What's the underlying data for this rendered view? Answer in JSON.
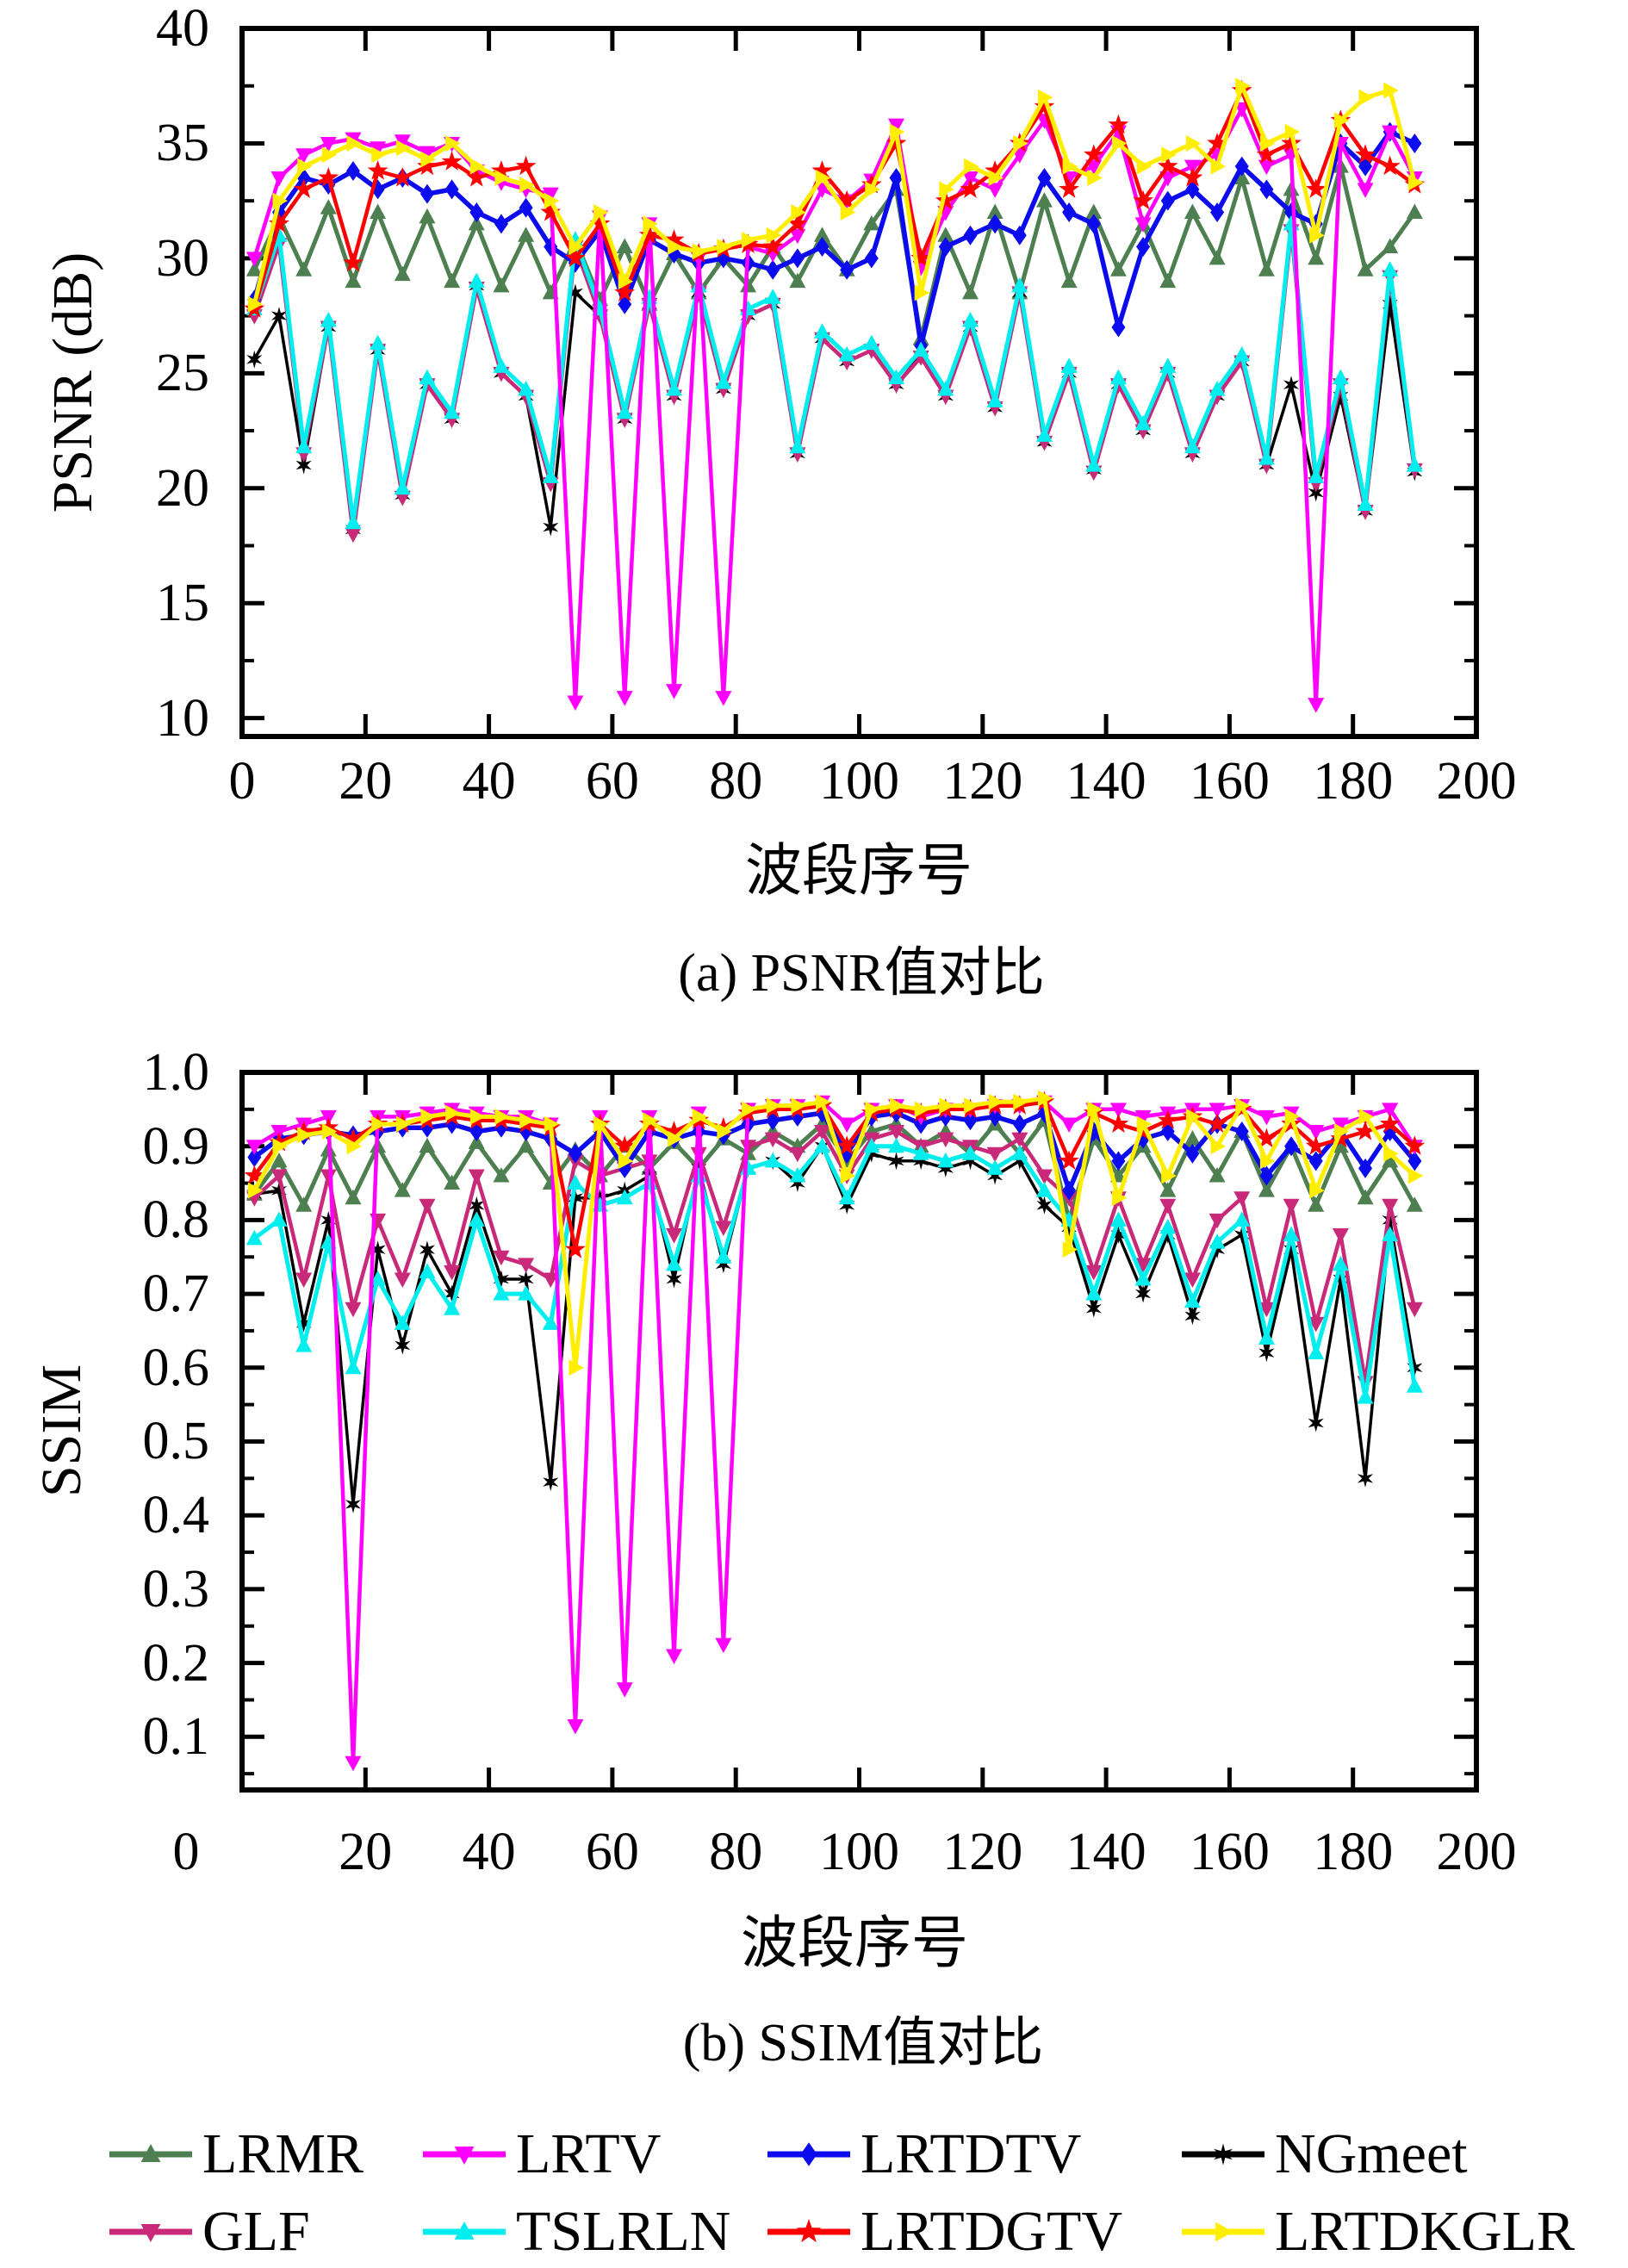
{
  "figure": {
    "background": "#ffffff",
    "captions": {
      "a": "(a) PSNR值对比",
      "b": "(b) SSIM值对比"
    }
  },
  "legend": {
    "entries": [
      {
        "label": "LRMR",
        "color": "#4E7F50",
        "marker": "triangle-up"
      },
      {
        "label": "LRTV",
        "color": "#FF00FF",
        "marker": "triangle-down"
      },
      {
        "label": "LRTDTV",
        "color": "#0B0BEE",
        "marker": "diamond"
      },
      {
        "label": "NGmeet",
        "color": "#000000",
        "marker": "asterisk"
      },
      {
        "label": "GLF",
        "color": "#C92979",
        "marker": "triangle-down"
      },
      {
        "label": "TSLRLN",
        "color": "#00EEEE",
        "marker": "triangle-up"
      },
      {
        "label": "LRTDGTV",
        "color": "#FF0000",
        "marker": "star"
      },
      {
        "label": "LRTDKGLR",
        "color": "#FFEE00",
        "marker": "triangle-right"
      }
    ]
  },
  "chart_data": [
    {
      "type": "line",
      "title": "(a) PSNR值对比",
      "xlabel": "波段序号",
      "ylabel": "PSNR (dB)",
      "xlim": [
        0,
        200
      ],
      "ylim": [
        9.2,
        40
      ],
      "xticks": [
        0,
        20,
        40,
        60,
        80,
        100,
        120,
        140,
        160,
        180,
        200
      ],
      "xtick_labels": [
        "0",
        "20",
        "40",
        "60",
        "80",
        "100",
        "120",
        "140",
        "160",
        "180",
        "200"
      ],
      "yticks": [
        40,
        35,
        30,
        25,
        20,
        15,
        10
      ],
      "ytick_labels": [
        "40",
        "35",
        "30",
        "25",
        "20",
        "15",
        "10"
      ],
      "grid": false,
      "x": [
        2,
        6,
        10,
        14,
        18,
        22,
        26,
        30,
        34,
        38,
        42,
        46,
        50,
        54,
        58,
        62,
        66,
        70,
        74,
        78,
        82,
        86,
        90,
        94,
        98,
        102,
        106,
        110,
        114,
        118,
        122,
        126,
        130,
        134,
        138,
        142,
        146,
        150,
        154,
        158,
        162,
        166,
        170,
        174,
        178,
        182,
        186,
        190
      ],
      "series": [
        {
          "name": "LRMR",
          "values": [
            29.5,
            31.8,
            29.5,
            32.2,
            29.0,
            32.0,
            29.3,
            31.8,
            29.0,
            31.5,
            28.8,
            31.0,
            28.5,
            30.8,
            28.2,
            30.5,
            28.0,
            30.2,
            28.5,
            30.0,
            28.8,
            30.5,
            29.0,
            31.0,
            29.5,
            31.5,
            33.0,
            26.5,
            31.0,
            28.5,
            32.0,
            28.5,
            32.5,
            29.0,
            32.0,
            29.5,
            31.5,
            29.0,
            32.0,
            30.0,
            33.5,
            29.5,
            33.0,
            30.0,
            34.0,
            29.5,
            30.5,
            32.0
          ]
        },
        {
          "name": "LRTV",
          "values": [
            30.0,
            33.5,
            34.5,
            35.0,
            35.2,
            34.8,
            35.1,
            34.6,
            35.0,
            33.8,
            33.3,
            33.0,
            32.8,
            10.7,
            31.8,
            10.9,
            31.5,
            11.2,
            30.0,
            10.9,
            30.5,
            30.2,
            31.0,
            33.0,
            32.5,
            33.4,
            35.8,
            29.6,
            32.0,
            33.5,
            33.0,
            34.5,
            36.0,
            33.5,
            34.0,
            35.5,
            31.5,
            33.5,
            34.0,
            34.5,
            36.5,
            34.0,
            34.5,
            10.6,
            35.0,
            33.0,
            35.5,
            33.5
          ]
        },
        {
          "name": "LRTDTV",
          "values": [
            28.2,
            32.0,
            33.5,
            33.2,
            33.8,
            33.0,
            33.5,
            32.8,
            33.0,
            32.0,
            31.5,
            32.2,
            30.5,
            29.8,
            31.2,
            28.0,
            30.8,
            30.2,
            29.8,
            30.0,
            29.8,
            29.5,
            30.0,
            30.5,
            29.5,
            30.0,
            33.5,
            26.2,
            30.5,
            31.0,
            31.5,
            31.0,
            33.5,
            32.0,
            31.5,
            27.0,
            30.5,
            32.5,
            33.0,
            32.0,
            34.0,
            33.0,
            32.0,
            31.5,
            35.0,
            34.0,
            35.5,
            35.0
          ]
        },
        {
          "name": "NGmeet",
          "values": [
            25.6,
            27.5,
            21.0,
            27.0,
            18.2,
            26.0,
            19.7,
            24.5,
            23.0,
            28.8,
            25.0,
            24.0,
            18.3,
            28.5,
            27.5,
            23.0,
            28.0,
            24.0,
            28.5,
            24.3,
            27.5,
            28.0,
            21.5,
            26.5,
            25.5,
            26.0,
            24.5,
            25.8,
            24.0,
            27.0,
            23.5,
            28.5,
            22.0,
            25.0,
            20.8,
            24.5,
            22.5,
            25.0,
            21.5,
            24.0,
            25.5,
            21.0,
            24.5,
            19.8,
            24.0,
            19.0,
            28.0,
            20.7
          ]
        },
        {
          "name": "GLF",
          "values": [
            27.5,
            30.6,
            21.5,
            27.0,
            18.0,
            26.0,
            19.6,
            24.5,
            23.0,
            28.7,
            25.0,
            24.0,
            20.2,
            30.5,
            27.5,
            23.0,
            28.0,
            24.0,
            28.5,
            24.3,
            27.5,
            28.0,
            21.5,
            26.5,
            25.5,
            26.0,
            24.5,
            25.7,
            24.0,
            27.0,
            23.5,
            28.5,
            22.0,
            25.0,
            20.7,
            24.5,
            22.5,
            25.0,
            21.5,
            24.0,
            25.5,
            21.0,
            31.2,
            20.2,
            24.5,
            19.0,
            29.2,
            20.8
          ]
        },
        {
          "name": "TSLRLN",
          "values": [
            27.8,
            31.0,
            21.8,
            27.3,
            18.5,
            26.3,
            20.0,
            24.8,
            23.3,
            29.0,
            25.3,
            24.3,
            20.5,
            30.8,
            27.8,
            23.3,
            28.3,
            24.3,
            28.8,
            24.6,
            27.8,
            28.3,
            21.8,
            26.8,
            25.8,
            26.3,
            24.8,
            26.0,
            24.3,
            27.3,
            23.8,
            28.8,
            22.3,
            25.3,
            21.0,
            24.8,
            22.8,
            25.3,
            21.8,
            24.3,
            25.8,
            21.3,
            31.5,
            20.5,
            24.8,
            19.3,
            29.5,
            21.0
          ]
        },
        {
          "name": "LRTDGTV",
          "values": [
            27.8,
            31.5,
            33.0,
            33.5,
            29.8,
            33.8,
            33.5,
            34.0,
            34.2,
            33.5,
            33.8,
            34.0,
            32.0,
            30.0,
            31.5,
            28.5,
            31.0,
            30.8,
            30.2,
            30.4,
            30.6,
            30.5,
            31.5,
            33.8,
            32.5,
            33.2,
            35.0,
            30.0,
            32.5,
            33.0,
            33.8,
            35.0,
            36.6,
            33.0,
            34.5,
            35.8,
            32.5,
            34.0,
            33.5,
            35.0,
            37.3,
            34.5,
            35.0,
            33.0,
            36.0,
            34.5,
            34.0,
            33.2
          ]
        },
        {
          "name": "LRTDKGLR",
          "values": [
            28.0,
            32.5,
            34.0,
            34.5,
            35.0,
            34.5,
            34.8,
            34.3,
            35.0,
            34.0,
            33.5,
            33.2,
            32.5,
            30.5,
            32.0,
            29.0,
            31.5,
            30.5,
            30.3,
            30.5,
            30.8,
            31.0,
            32.0,
            33.5,
            32.0,
            33.0,
            35.5,
            28.5,
            33.0,
            34.0,
            33.5,
            35.0,
            37.0,
            34.0,
            33.5,
            35.0,
            34.0,
            34.5,
            35.0,
            34.0,
            37.5,
            35.0,
            35.5,
            31.0,
            36.0,
            37.0,
            37.3,
            33.3
          ]
        }
      ]
    },
    {
      "type": "line",
      "title": "(b) SSIM值对比",
      "xlabel": "波段序号",
      "ylabel": "SSIM",
      "xlim": [
        0,
        200
      ],
      "ylim": [
        0.028,
        1.0
      ],
      "xticks": [
        0,
        20,
        40,
        60,
        80,
        100,
        120,
        140,
        160,
        180,
        200
      ],
      "xtick_labels": [
        "0",
        "20",
        "40",
        "60",
        "80",
        "100",
        "120",
        "140",
        "160",
        "180",
        "200"
      ],
      "yticks": [
        1.0,
        0.9,
        0.8,
        0.7,
        0.6,
        0.5,
        0.4,
        0.3,
        0.2,
        0.1
      ],
      "ytick_labels": [
        "1.0",
        "0.9",
        "0.8",
        "0.7",
        "0.6",
        "0.5",
        "0.4",
        "0.3",
        "0.2",
        "0.1"
      ],
      "grid": false,
      "x": [
        2,
        6,
        10,
        14,
        18,
        22,
        26,
        30,
        34,
        38,
        42,
        46,
        50,
        54,
        58,
        62,
        66,
        70,
        74,
        78,
        82,
        86,
        90,
        94,
        98,
        102,
        106,
        110,
        114,
        118,
        122,
        126,
        130,
        134,
        138,
        142,
        146,
        150,
        154,
        158,
        162,
        166,
        170,
        174,
        178,
        182,
        186,
        190
      ],
      "series": [
        {
          "name": "LRMR",
          "values": [
            0.835,
            0.88,
            0.82,
            0.895,
            0.83,
            0.9,
            0.84,
            0.9,
            0.85,
            0.905,
            0.86,
            0.9,
            0.85,
            0.895,
            0.86,
            0.9,
            0.87,
            0.905,
            0.87,
            0.91,
            0.89,
            0.92,
            0.9,
            0.93,
            0.88,
            0.92,
            0.93,
            0.9,
            0.92,
            0.89,
            0.93,
            0.89,
            0.935,
            0.8,
            0.91,
            0.86,
            0.9,
            0.84,
            0.91,
            0.86,
            0.92,
            0.84,
            0.9,
            0.82,
            0.9,
            0.83,
            0.88,
            0.82
          ]
        },
        {
          "name": "LRTV",
          "values": [
            0.9,
            0.92,
            0.93,
            0.94,
            0.065,
            0.94,
            0.94,
            0.945,
            0.95,
            0.945,
            0.94,
            0.94,
            0.93,
            0.115,
            0.94,
            0.165,
            0.94,
            0.21,
            0.945,
            0.225,
            0.95,
            0.955,
            0.955,
            0.96,
            0.93,
            0.95,
            0.955,
            0.94,
            0.95,
            0.95,
            0.955,
            0.955,
            0.96,
            0.93,
            0.95,
            0.95,
            0.94,
            0.945,
            0.95,
            0.95,
            0.955,
            0.94,
            0.945,
            0.92,
            0.93,
            0.94,
            0.95,
            0.9
          ]
        },
        {
          "name": "LRTDTV",
          "values": [
            0.885,
            0.91,
            0.915,
            0.92,
            0.915,
            0.92,
            0.925,
            0.925,
            0.93,
            0.92,
            0.925,
            0.92,
            0.91,
            0.89,
            0.92,
            0.87,
            0.92,
            0.91,
            0.92,
            0.915,
            0.93,
            0.935,
            0.94,
            0.945,
            0.89,
            0.94,
            0.945,
            0.93,
            0.94,
            0.935,
            0.94,
            0.93,
            0.945,
            0.84,
            0.92,
            0.88,
            0.91,
            0.92,
            0.89,
            0.93,
            0.92,
            0.86,
            0.9,
            0.88,
            0.92,
            0.87,
            0.92,
            0.88
          ]
        },
        {
          "name": "NGmeet",
          "values": [
            0.835,
            0.84,
            0.66,
            0.8,
            0.415,
            0.76,
            0.63,
            0.76,
            0.7,
            0.82,
            0.72,
            0.72,
            0.445,
            0.83,
            0.83,
            0.84,
            0.86,
            0.72,
            0.87,
            0.74,
            0.87,
            0.88,
            0.85,
            0.9,
            0.82,
            0.89,
            0.88,
            0.88,
            0.87,
            0.88,
            0.86,
            0.88,
            0.82,
            0.79,
            0.68,
            0.78,
            0.7,
            0.78,
            0.67,
            0.76,
            0.78,
            0.62,
            0.76,
            0.525,
            0.72,
            0.45,
            0.8,
            0.6
          ]
        },
        {
          "name": "GLF",
          "values": [
            0.83,
            0.86,
            0.72,
            0.86,
            0.68,
            0.8,
            0.72,
            0.82,
            0.73,
            0.86,
            0.75,
            0.74,
            0.72,
            0.88,
            0.86,
            0.87,
            0.88,
            0.78,
            0.89,
            0.79,
            0.9,
            0.91,
            0.89,
            0.92,
            0.86,
            0.91,
            0.92,
            0.9,
            0.91,
            0.9,
            0.89,
            0.91,
            0.86,
            0.83,
            0.73,
            0.83,
            0.74,
            0.82,
            0.72,
            0.8,
            0.83,
            0.68,
            0.82,
            0.66,
            0.78,
            0.58,
            0.82,
            0.68
          ]
        },
        {
          "name": "TSLRLN",
          "values": [
            0.775,
            0.8,
            0.63,
            0.77,
            0.6,
            0.72,
            0.66,
            0.73,
            0.68,
            0.8,
            0.7,
            0.7,
            0.66,
            0.85,
            0.82,
            0.83,
            0.85,
            0.74,
            0.86,
            0.75,
            0.87,
            0.88,
            0.86,
            0.9,
            0.83,
            0.9,
            0.9,
            0.89,
            0.88,
            0.89,
            0.87,
            0.89,
            0.84,
            0.8,
            0.7,
            0.8,
            0.72,
            0.79,
            0.69,
            0.77,
            0.8,
            0.64,
            0.78,
            0.62,
            0.74,
            0.56,
            0.78,
            0.575
          ]
        },
        {
          "name": "LRTDGTV",
          "values": [
            0.86,
            0.905,
            0.92,
            0.925,
            0.91,
            0.93,
            0.93,
            0.935,
            0.94,
            0.935,
            0.935,
            0.93,
            0.925,
            0.76,
            0.93,
            0.9,
            0.93,
            0.92,
            0.935,
            0.925,
            0.945,
            0.95,
            0.95,
            0.955,
            0.9,
            0.945,
            0.95,
            0.945,
            0.95,
            0.95,
            0.955,
            0.955,
            0.96,
            0.88,
            0.945,
            0.93,
            0.92,
            0.935,
            0.94,
            0.93,
            0.95,
            0.91,
            0.93,
            0.9,
            0.91,
            0.92,
            0.93,
            0.9
          ]
        },
        {
          "name": "LRTDKGLR",
          "values": [
            0.84,
            0.9,
            0.915,
            0.92,
            0.9,
            0.93,
            0.93,
            0.94,
            0.945,
            0.94,
            0.94,
            0.935,
            0.93,
            0.6,
            0.93,
            0.88,
            0.935,
            0.91,
            0.94,
            0.92,
            0.95,
            0.955,
            0.955,
            0.96,
            0.86,
            0.95,
            0.955,
            0.95,
            0.955,
            0.955,
            0.96,
            0.96,
            0.965,
            0.76,
            0.95,
            0.83,
            0.93,
            0.86,
            0.94,
            0.9,
            0.955,
            0.88,
            0.94,
            0.84,
            0.92,
            0.94,
            0.89,
            0.86
          ]
        }
      ]
    }
  ]
}
